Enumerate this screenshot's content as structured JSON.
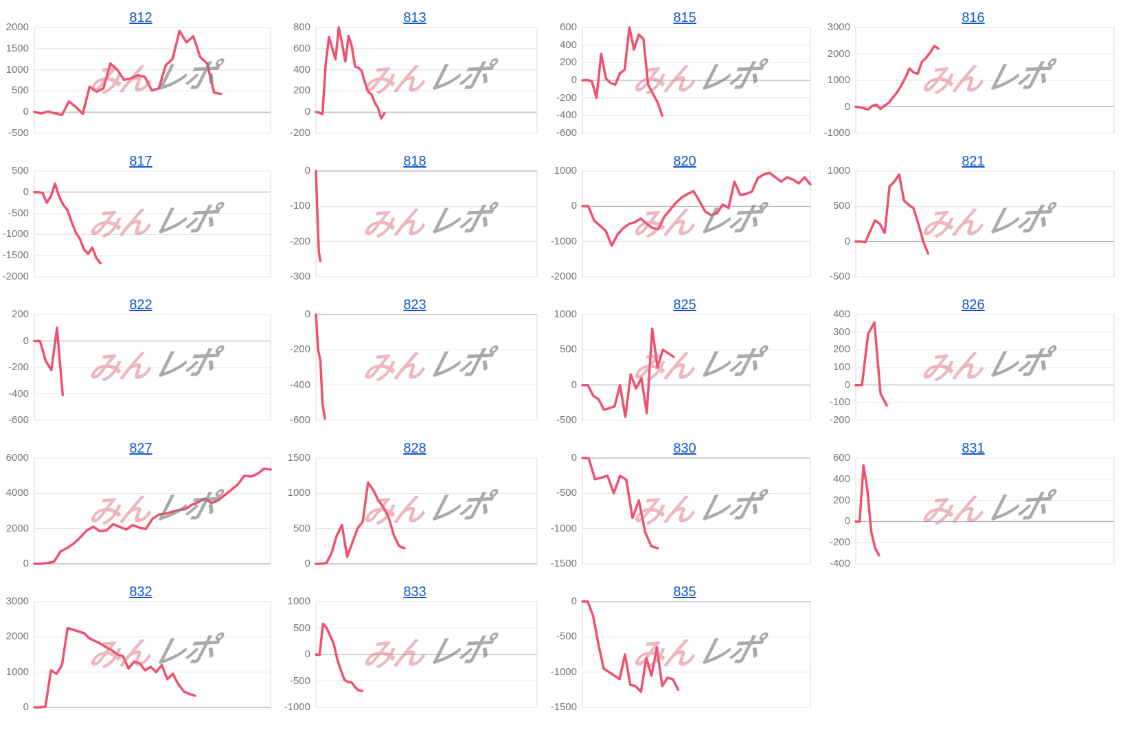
{
  "page": {
    "background": "#ffffff"
  },
  "colors": {
    "line": "#f0506e",
    "title_link": "#1155cc",
    "gridline": "#e3e3e3",
    "zero_line": "#9e9e9e",
    "axis_line": "#d9d9d9",
    "tick_text": "#757575",
    "watermark_pink": "rgba(222,110,126,0.5)",
    "watermark_gray": "rgba(130,130,130,0.68)"
  },
  "watermark": {
    "pink_text": "みん",
    "gray_text": "レポ"
  },
  "chart_data": [
    {
      "type": "line",
      "title": "812",
      "yticks": [
        2000,
        1500,
        1000,
        500,
        0,
        -500
      ],
      "ylim": [
        -500,
        2000
      ],
      "values": [
        0,
        -30,
        10,
        -30,
        -70,
        250,
        120,
        -40,
        600,
        480,
        560,
        1150,
        1000,
        760,
        800,
        870,
        830,
        510,
        560,
        1100,
        1260,
        1920,
        1650,
        1790,
        1300,
        1150,
        460,
        430
      ],
      "x_end": 0.79
    },
    {
      "type": "line",
      "title": "813",
      "yticks": [
        800,
        600,
        400,
        200,
        0,
        -200
      ],
      "ylim": [
        -200,
        800
      ],
      "values": [
        0,
        -5,
        -20,
        460,
        710,
        600,
        500,
        800,
        650,
        480,
        720,
        620,
        430,
        420,
        390,
        280,
        190,
        170,
        90,
        40,
        -60,
        -10
      ],
      "x_end": 0.31
    },
    {
      "type": "line",
      "title": "815",
      "yticks": [
        600,
        400,
        200,
        0,
        -200,
        -400,
        -600
      ],
      "ylim": [
        -600,
        600
      ],
      "values": [
        0,
        5,
        -10,
        -200,
        300,
        20,
        -30,
        -50,
        80,
        120,
        600,
        350,
        520,
        470,
        -50,
        -150,
        -250,
        -400
      ],
      "x_end": 0.35
    },
    {
      "type": "line",
      "title": "816",
      "yticks": [
        3000,
        2000,
        1000,
        0,
        -1000
      ],
      "ylim": [
        -1000,
        3000
      ],
      "values": [
        0,
        -20,
        -60,
        -100,
        30,
        80,
        -80,
        50,
        150,
        350,
        550,
        800,
        1100,
        1450,
        1300,
        1250,
        1700,
        1850,
        2050,
        2300,
        2200
      ],
      "x_end": 0.32
    },
    {
      "type": "line",
      "title": "817",
      "yticks": [
        500,
        0,
        -500,
        -1000,
        -1500,
        -2000
      ],
      "ylim": [
        -2000,
        500
      ],
      "values": [
        0,
        0,
        -20,
        -250,
        -100,
        200,
        -100,
        -300,
        -420,
        -700,
        -950,
        -1100,
        -1350,
        -1460,
        -1310,
        -1560,
        -1680
      ],
      "x_end": 0.28
    },
    {
      "type": "line",
      "title": "818",
      "yticks": [
        0,
        -100,
        -200,
        -300
      ],
      "ylim": [
        -300,
        0
      ],
      "values": [
        0,
        -120,
        -230,
        -255
      ],
      "x_end": 0.02
    },
    {
      "type": "line",
      "title": "820",
      "yticks": [
        1000,
        0,
        -1000,
        -2000
      ],
      "ylim": [
        -2000,
        1000
      ],
      "values": [
        0,
        0,
        -400,
        -550,
        -700,
        -1120,
        -800,
        -620,
        -500,
        -450,
        -350,
        -500,
        -620,
        -650,
        -300,
        -100,
        100,
        250,
        350,
        430,
        150,
        -150,
        -250,
        -200,
        50,
        -50,
        700,
        320,
        350,
        420,
        800,
        900,
        950,
        820,
        700,
        820,
        760,
        650,
        820,
        620
      ],
      "x_end": 1.0
    },
    {
      "type": "line",
      "title": "821",
      "yticks": [
        1000,
        500,
        0,
        -500
      ],
      "ylim": [
        -500,
        1000
      ],
      "values": [
        0,
        0,
        -10,
        150,
        300,
        250,
        120,
        780,
        850,
        950,
        580,
        520,
        470,
        250,
        0,
        -170
      ],
      "x_end": 0.28
    },
    {
      "type": "line",
      "title": "822",
      "yticks": [
        200,
        0,
        -200,
        -400,
        -600
      ],
      "ylim": [
        -600,
        200
      ],
      "values": [
        0,
        0,
        -150,
        -220,
        100,
        -410
      ],
      "x_end": 0.12
    },
    {
      "type": "line",
      "title": "823",
      "yticks": [
        0,
        -200,
        -400,
        -600
      ],
      "ylim": [
        -600,
        0
      ],
      "values": [
        0,
        -200,
        -260,
        -510,
        -590
      ],
      "x_end": 0.04
    },
    {
      "type": "line",
      "title": "825",
      "yticks": [
        1000,
        500,
        0,
        -500
      ],
      "ylim": [
        -500,
        1000
      ],
      "values": [
        0,
        0,
        -150,
        -200,
        -350,
        -330,
        -300,
        0,
        -450,
        150,
        -50,
        100,
        -400,
        800,
        250,
        500,
        450,
        400
      ],
      "x_end": 0.4
    },
    {
      "type": "line",
      "title": "826",
      "yticks": [
        400,
        300,
        200,
        100,
        0,
        -100,
        -200
      ],
      "ylim": [
        -200,
        400
      ],
      "values": [
        0,
        0,
        290,
        355,
        -50,
        -115
      ],
      "x_end": 0.12
    },
    {
      "type": "line",
      "title": "827",
      "yticks": [
        6000,
        4000,
        2000,
        0
      ],
      "ylim": [
        0,
        6000
      ],
      "values": [
        0,
        0,
        50,
        120,
        700,
        900,
        1150,
        1500,
        1900,
        2100,
        1850,
        1900,
        2250,
        2100,
        1950,
        2200,
        2050,
        1980,
        2550,
        2800,
        2850,
        2950,
        3050,
        3100,
        3350,
        3500,
        3700,
        3450,
        3600,
        3900,
        4200,
        4500,
        5000,
        4950,
        5100,
        5400,
        5350
      ],
      "x_end": 1.0
    },
    {
      "type": "line",
      "title": "828",
      "yticks": [
        1500,
        1000,
        500,
        0
      ],
      "ylim": [
        0,
        1500
      ],
      "values": [
        0,
        0,
        10,
        150,
        400,
        550,
        100,
        300,
        500,
        600,
        1150,
        1050,
        900,
        800,
        650,
        400,
        250,
        220
      ],
      "x_end": 0.4
    },
    {
      "type": "line",
      "title": "830",
      "yticks": [
        0,
        -500,
        -1000,
        -1500
      ],
      "ylim": [
        -1500,
        0
      ],
      "values": [
        0,
        0,
        -300,
        -280,
        -250,
        -500,
        -250,
        -310,
        -850,
        -600,
        -1050,
        -1250,
        -1280
      ],
      "x_end": 0.33
    },
    {
      "type": "line",
      "title": "831",
      "yticks": [
        600,
        400,
        200,
        0,
        -200,
        -400
      ],
      "ylim": [
        -400,
        600
      ],
      "values": [
        0,
        0,
        530,
        300,
        -100,
        -250,
        -320
      ],
      "x_end": 0.09
    },
    {
      "type": "line",
      "title": "832",
      "yticks": [
        3000,
        2000,
        1000,
        0
      ],
      "ylim": [
        0,
        3000
      ],
      "values": [
        0,
        0,
        20,
        1050,
        950,
        1200,
        2250,
        2200,
        2150,
        2100,
        1950,
        1880,
        1800,
        1700,
        1620,
        1500,
        1450,
        1100,
        1300,
        1250,
        1050,
        1150,
        1000,
        1200,
        800,
        950,
        650,
        450,
        380,
        330
      ],
      "x_end": 0.68
    },
    {
      "type": "line",
      "title": "833",
      "yticks": [
        1000,
        500,
        0,
        -500,
        -1000
      ],
      "ylim": [
        -1000,
        1000
      ],
      "values": [
        0,
        -10,
        580,
        500,
        350,
        200,
        -100,
        -300,
        -480,
        -520,
        -530,
        -620,
        -680,
        -690
      ],
      "x_end": 0.21
    },
    {
      "type": "line",
      "title": "835",
      "yticks": [
        0,
        -500,
        -1000,
        -1500
      ],
      "ylim": [
        -1500,
        0
      ],
      "values": [
        0,
        0,
        -200,
        -600,
        -950,
        -1000,
        -1050,
        -1100,
        -750,
        -1180,
        -1200,
        -1280,
        -800,
        -1050,
        -650,
        -1200,
        -1080,
        -1100,
        -1250
      ],
      "x_end": 0.42
    }
  ]
}
